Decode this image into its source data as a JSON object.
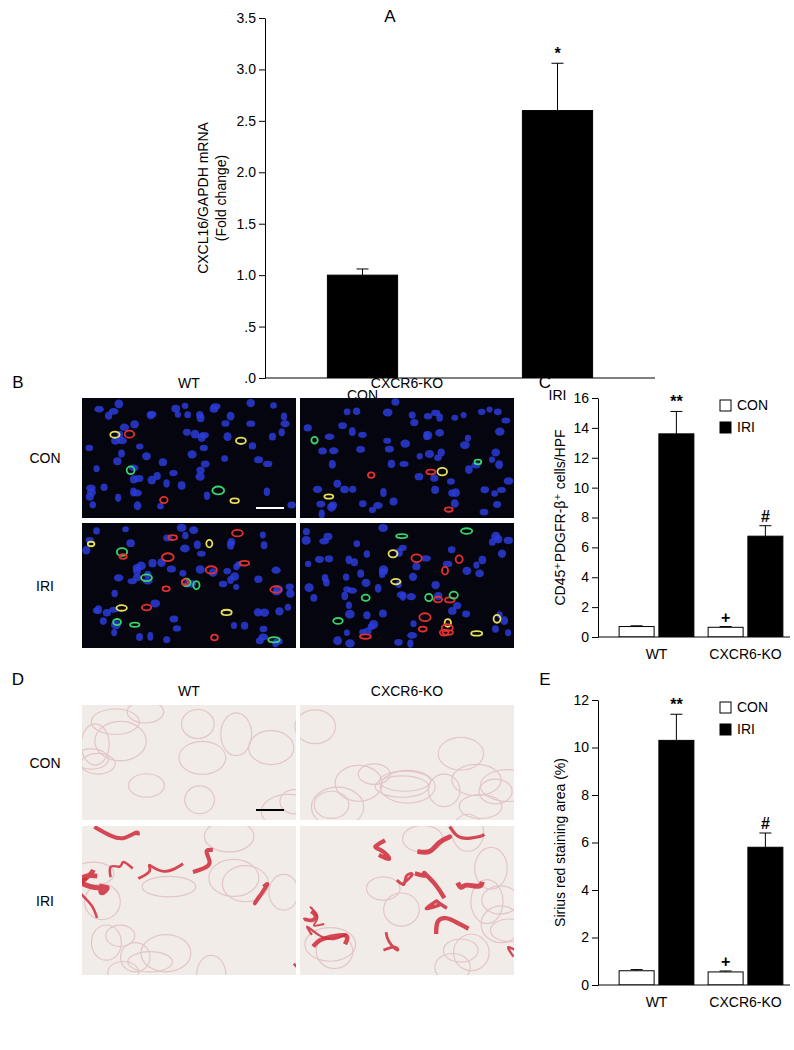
{
  "chart_data": [
    {
      "type": "bar",
      "panel": "A",
      "y_label": [
        "CXCL16/GAPDH mRNA",
        "(Fold change)"
      ],
      "categories": [
        "CON",
        "IRI"
      ],
      "values": [
        1.0,
        2.6
      ],
      "errors": [
        0.06,
        0.46
      ],
      "significance": [
        null,
        "*"
      ],
      "color": "#000000",
      "ylim": [
        0,
        3.5
      ],
      "yticks": [
        {
          "value": 0,
          "label": ".0"
        },
        {
          "value": 0.5,
          "label": ".5"
        },
        {
          "value": 1,
          "label": "1.0"
        },
        {
          "value": 1.5,
          "label": "1.5"
        },
        {
          "value": 2,
          "label": "2.0"
        },
        {
          "value": 2.5,
          "label": "2.5"
        },
        {
          "value": 3,
          "label": "3.0"
        },
        {
          "value": 3.5,
          "label": "3.5"
        }
      ]
    },
    {
      "type": "bar",
      "panel": "C",
      "y_label": [
        "CD45⁺PDGFR-β⁺ cells/HPF"
      ],
      "categories": [
        "WT",
        "CXCR6-KO"
      ],
      "series": [
        {
          "name": "CON",
          "color": "#ffffff",
          "values": [
            0.7,
            0.65
          ],
          "errors": [
            0.05,
            0.05
          ],
          "significance": [
            null,
            "+"
          ]
        },
        {
          "name": "IRI",
          "color": "#000000",
          "values": [
            13.6,
            6.75
          ],
          "errors": [
            1.5,
            0.7
          ],
          "significance": [
            "**",
            "#"
          ]
        }
      ],
      "legend": "upper right",
      "ylim": [
        0,
        16
      ],
      "yticks": [
        0,
        2,
        4,
        6,
        8,
        10,
        12,
        14,
        16
      ]
    },
    {
      "type": "bar",
      "panel": "E",
      "y_label": [
        "Sirius red staining area (%)"
      ],
      "categories": [
        "WT",
        "CXCR6-KO"
      ],
      "series": [
        {
          "name": "CON",
          "color": "#ffffff",
          "values": [
            0.6,
            0.55
          ],
          "errors": [
            0.05,
            0.04
          ],
          "significance": [
            null,
            "+"
          ]
        },
        {
          "name": "IRI",
          "color": "#000000",
          "values": [
            10.3,
            5.8
          ],
          "errors": [
            1.1,
            0.6
          ],
          "significance": [
            "**",
            "#"
          ]
        }
      ],
      "legend": "upper right",
      "ylim": [
        0,
        12
      ],
      "yticks": [
        0,
        2,
        4,
        6,
        8,
        10,
        12
      ]
    }
  ],
  "image_panels": [
    {
      "panel": "B",
      "columns": [
        "WT",
        "CXCR6-KO"
      ],
      "rows": [
        "CON",
        "IRI"
      ]
    },
    {
      "panel": "D",
      "columns": [
        "WT",
        "CXCR6-KO"
      ],
      "rows": [
        "CON",
        "IRI"
      ]
    }
  ]
}
